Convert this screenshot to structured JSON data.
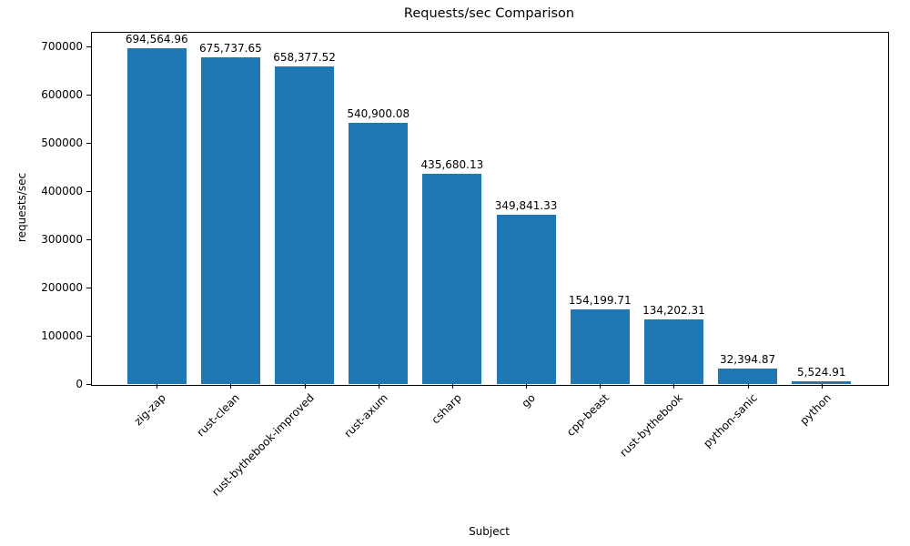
{
  "chart_data": {
    "type": "bar",
    "title": "Requests/sec Comparison",
    "xlabel": "Subject",
    "ylabel": "requests/sec",
    "categories": [
      "zig-zap",
      "rust-clean",
      "rust-bythebook-improved",
      "rust-axum",
      "csharp",
      "go",
      "cpp-beast",
      "rust-bythebook",
      "python-sanic",
      "python"
    ],
    "values": [
      694564.96,
      675737.65,
      658377.52,
      540900.08,
      435680.13,
      349841.33,
      154199.71,
      134202.31,
      32394.87,
      5524.91
    ],
    "value_labels": [
      "694,564.96",
      "675,737.65",
      "658,377.52",
      "540,900.08",
      "435,680.13",
      "349,841.33",
      "154,199.71",
      "134,202.31",
      "32,394.87",
      "5,524.91"
    ],
    "y_ticks": [
      0,
      100000,
      200000,
      300000,
      400000,
      500000,
      600000,
      700000
    ],
    "ylim": [
      0,
      729300
    ],
    "bar_color": "#1f77b4",
    "bar_width_fraction": 0.8,
    "grid": false,
    "legend": false
  }
}
